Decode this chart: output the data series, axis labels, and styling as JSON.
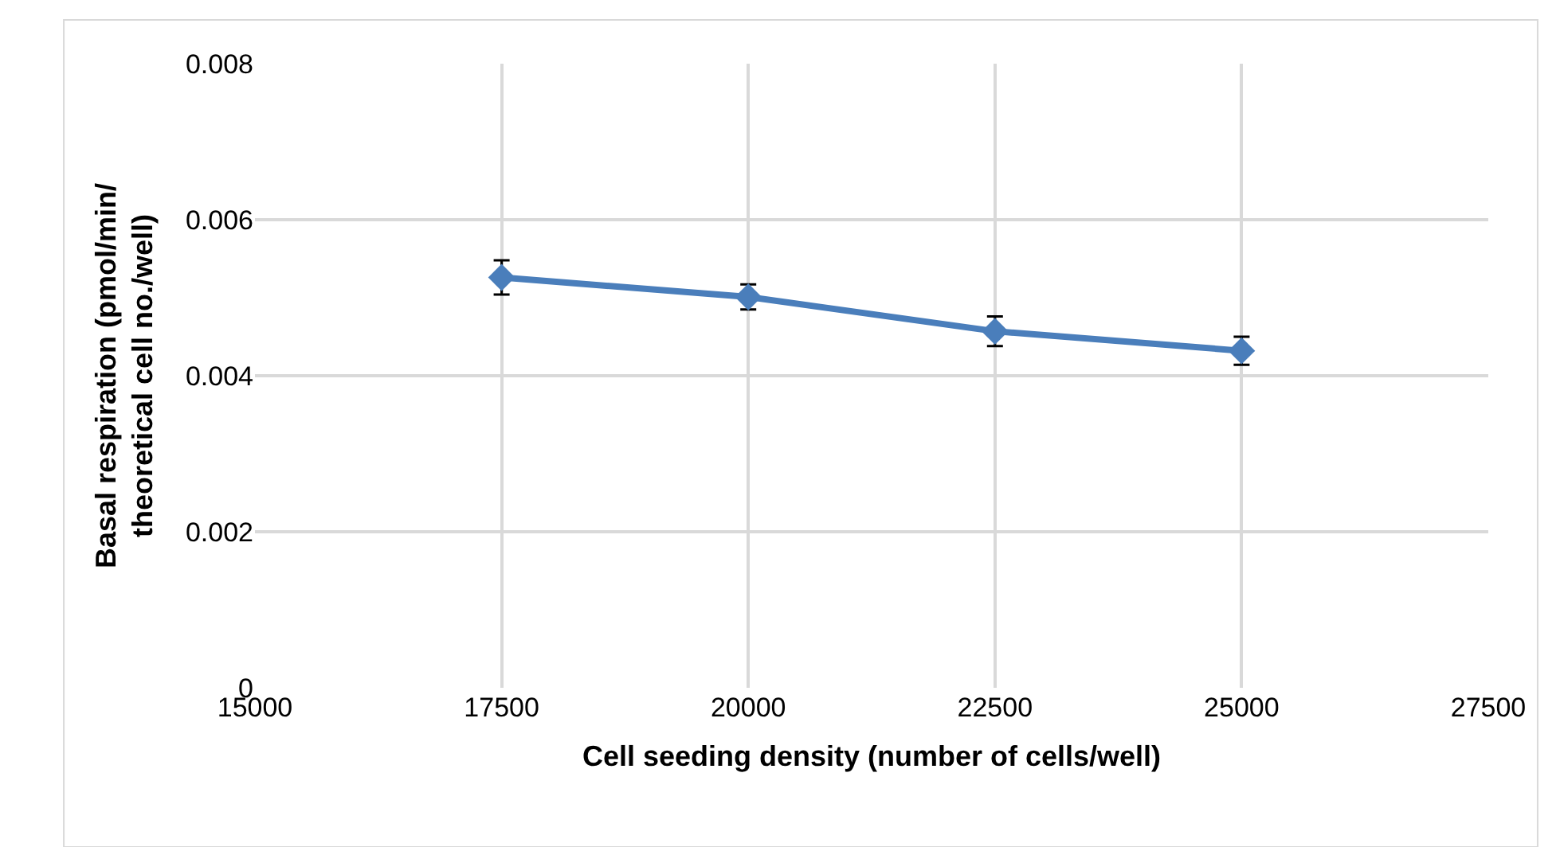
{
  "chart_data": {
    "type": "line",
    "xlabel": "Cell seeding density (number of cells/well)",
    "ylabel": "Basal respiration (pmol/min/\ntheoretical cell no./well)",
    "x": [
      17500,
      20000,
      22500,
      25000
    ],
    "series": [
      {
        "color": "#4a7ebb",
        "values": [
          0.00526,
          0.00501,
          0.00457,
          0.00432
        ],
        "errors": [
          0.00022,
          0.00016,
          0.00019,
          0.00018
        ]
      }
    ],
    "xlim": [
      15000,
      27500
    ],
    "xticks": [
      15000,
      17500,
      20000,
      22500,
      25000,
      27500
    ],
    "ylim": [
      0,
      0.008
    ],
    "yticks": [
      0,
      0.002,
      0.004,
      0.006,
      0.008
    ],
    "grid": true,
    "marker": "diamond",
    "line_style": "solid"
  }
}
